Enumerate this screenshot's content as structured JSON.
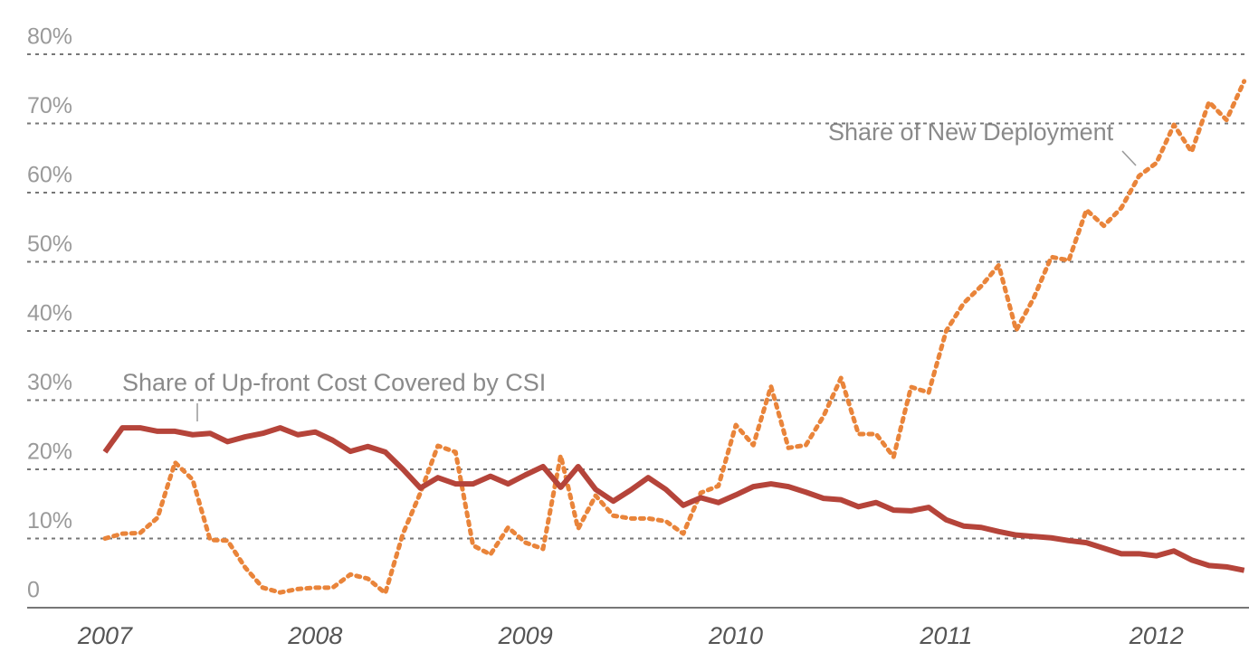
{
  "chart_data": {
    "type": "line",
    "x": [
      2007,
      2007.083,
      2007.167,
      2007.25,
      2007.333,
      2007.417,
      2007.5,
      2007.583,
      2007.667,
      2007.75,
      2007.833,
      2007.917,
      2008,
      2008.083,
      2008.167,
      2008.25,
      2008.333,
      2008.417,
      2008.5,
      2008.583,
      2008.667,
      2008.75,
      2008.833,
      2008.917,
      2009,
      2009.083,
      2009.167,
      2009.25,
      2009.333,
      2009.417,
      2009.5,
      2009.583,
      2009.667,
      2009.75,
      2009.833,
      2009.917,
      2010,
      2010.083,
      2010.167,
      2010.25,
      2010.333,
      2010.417,
      2010.5,
      2010.583,
      2010.667,
      2010.75,
      2010.833,
      2010.917,
      2011,
      2011.083,
      2011.167,
      2011.25,
      2011.333,
      2011.417,
      2011.5,
      2011.583,
      2011.667,
      2011.75,
      2011.833,
      2011.917,
      2012,
      2012.083,
      2012.167,
      2012.25,
      2012.333,
      2012.417
    ],
    "series": [
      {
        "name": "Share of New Deployment",
        "color": "#e9843a",
        "dashed": true,
        "values": [
          10,
          10.7,
          10.8,
          13,
          21,
          18.5,
          9.8,
          9.7,
          5.8,
          2.9,
          2.2,
          2.7,
          2.9,
          2.9,
          4.8,
          4.2,
          2.1,
          10.7,
          16.6,
          23.4,
          22.5,
          9,
          7.7,
          11.6,
          9.4,
          8.5,
          22,
          11.4,
          16.2,
          13.3,
          12.9,
          12.9,
          12.5,
          10.7,
          16.6,
          17.6,
          26.4,
          23.5,
          32,
          23.1,
          23.5,
          27.7,
          33.2,
          25.1,
          25.1,
          21.8,
          31.9,
          31.1,
          40,
          44,
          46.5,
          49.5,
          40.1,
          44.8,
          50.7,
          50.2,
          57.5,
          55.2,
          57.8,
          62.4,
          64.3,
          69.8,
          65.9,
          73.1,
          70.5,
          76.1
        ]
      },
      {
        "name": "Share of Up-front Cost Covered by CSI",
        "color": "#b5443a",
        "dashed": false,
        "values": [
          22.5,
          26,
          26,
          25.5,
          25.5,
          25,
          25.2,
          24,
          24.7,
          25.2,
          26,
          25,
          25.4,
          24.2,
          22.6,
          23.3,
          22.5,
          20,
          17.3,
          18.8,
          17.9,
          17.9,
          19,
          17.9,
          19.2,
          20.4,
          17.4,
          20.4,
          17.1,
          15.4,
          17,
          18.8,
          17.1,
          14.8,
          15.9,
          15.2,
          16.3,
          17.5,
          17.9,
          17.5,
          16.7,
          15.8,
          15.6,
          14.6,
          15.2,
          14.1,
          14,
          14.5,
          12.7,
          11.8,
          11.6,
          11,
          10.5,
          10.3,
          10.1,
          9.7,
          9.4,
          8.6,
          7.8,
          7.8,
          7.5,
          8.2,
          6.9,
          6.1,
          5.9,
          5.4
        ]
      }
    ],
    "xlim": [
      2006.63,
      2012.44
    ],
    "xticks": [
      2007,
      2008,
      2009,
      2010,
      2011,
      2012
    ],
    "ylim": [
      0,
      80
    ],
    "yticks": [
      0,
      {
        "value": 10,
        "label": "10%"
      },
      {
        "value": 20,
        "label": "20%"
      },
      {
        "value": 30,
        "label": "30%"
      },
      {
        "value": 40,
        "label": "40%"
      },
      {
        "value": 50,
        "label": "50%"
      },
      {
        "value": 60,
        "label": "60%"
      },
      {
        "value": 70,
        "label": "70%"
      },
      {
        "value": 80,
        "label": "80%"
      }
    ],
    "grid": true
  }
}
